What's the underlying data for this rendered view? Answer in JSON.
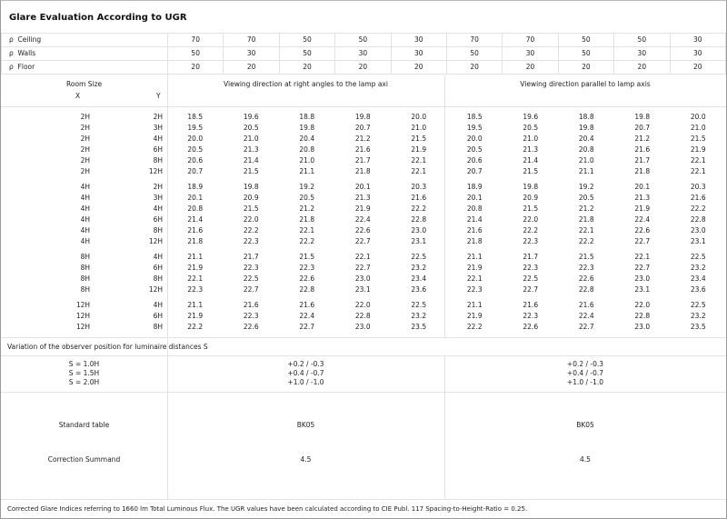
{
  "title": "Glare Evaluation According to UGR",
  "reflectance": {
    "symbol": "ρ",
    "rows": [
      {
        "label": "Ceiling",
        "values": [
          "70",
          "70",
          "50",
          "50",
          "30",
          "70",
          "70",
          "50",
          "50",
          "30"
        ]
      },
      {
        "label": "Walls",
        "values": [
          "50",
          "30",
          "50",
          "30",
          "30",
          "50",
          "30",
          "50",
          "30",
          "30"
        ]
      },
      {
        "label": "Floor",
        "values": [
          "20",
          "20",
          "20",
          "20",
          "20",
          "20",
          "20",
          "20",
          "20",
          "20"
        ]
      }
    ]
  },
  "header": {
    "room_size": "Room Size",
    "x": "X",
    "y": "Y",
    "dir_right_angles": "Viewing direction at right angles to the lamp axi",
    "dir_parallel": "Viewing direction parallel to lamp axis"
  },
  "groups": [
    {
      "rows": [
        {
          "x": "2H",
          "y": "2H",
          "values": [
            "18.5",
            "19.6",
            "18.8",
            "19.8",
            "20.0",
            "18.5",
            "19.6",
            "18.8",
            "19.8",
            "20.0"
          ]
        },
        {
          "x": "2H",
          "y": "3H",
          "values": [
            "19.5",
            "20.5",
            "19.8",
            "20.7",
            "21.0",
            "19.5",
            "20.5",
            "19.8",
            "20.7",
            "21.0"
          ]
        },
        {
          "x": "2H",
          "y": "4H",
          "values": [
            "20.0",
            "21.0",
            "20.4",
            "21.2",
            "21.5",
            "20.0",
            "21.0",
            "20.4",
            "21.2",
            "21.5"
          ]
        },
        {
          "x": "2H",
          "y": "6H",
          "values": [
            "20.5",
            "21.3",
            "20.8",
            "21.6",
            "21.9",
            "20.5",
            "21.3",
            "20.8",
            "21.6",
            "21.9"
          ]
        },
        {
          "x": "2H",
          "y": "8H",
          "values": [
            "20.6",
            "21.4",
            "21.0",
            "21.7",
            "22.1",
            "20.6",
            "21.4",
            "21.0",
            "21.7",
            "22.1"
          ]
        },
        {
          "x": "2H",
          "y": "12H",
          "values": [
            "20.7",
            "21.5",
            "21.1",
            "21.8",
            "22.1",
            "20.7",
            "21.5",
            "21.1",
            "21.8",
            "22.1"
          ]
        }
      ]
    },
    {
      "rows": [
        {
          "x": "4H",
          "y": "2H",
          "values": [
            "18.9",
            "19.8",
            "19.2",
            "20.1",
            "20.3",
            "18.9",
            "19.8",
            "19.2",
            "20.1",
            "20.3"
          ]
        },
        {
          "x": "4H",
          "y": "3H",
          "values": [
            "20.1",
            "20.9",
            "20.5",
            "21.3",
            "21.6",
            "20.1",
            "20.9",
            "20.5",
            "21.3",
            "21.6"
          ]
        },
        {
          "x": "4H",
          "y": "4H",
          "values": [
            "20.8",
            "21.5",
            "21.2",
            "21.9",
            "22.2",
            "20.8",
            "21.5",
            "21.2",
            "21.9",
            "22.2"
          ]
        },
        {
          "x": "4H",
          "y": "6H",
          "values": [
            "21.4",
            "22.0",
            "21.8",
            "22.4",
            "22.8",
            "21.4",
            "22.0",
            "21.8",
            "22.4",
            "22.8"
          ]
        },
        {
          "x": "4H",
          "y": "8H",
          "values": [
            "21.6",
            "22.2",
            "22.1",
            "22.6",
            "23.0",
            "21.6",
            "22.2",
            "22.1",
            "22.6",
            "23.0"
          ]
        },
        {
          "x": "4H",
          "y": "12H",
          "values": [
            "21.8",
            "22.3",
            "22.2",
            "22.7",
            "23.1",
            "21.8",
            "22.3",
            "22.2",
            "22.7",
            "23.1"
          ]
        }
      ]
    },
    {
      "rows": [
        {
          "x": "8H",
          "y": "4H",
          "values": [
            "21.1",
            "21.7",
            "21.5",
            "22.1",
            "22.5",
            "21.1",
            "21.7",
            "21.5",
            "22.1",
            "22.5"
          ]
        },
        {
          "x": "8H",
          "y": "6H",
          "values": [
            "21.9",
            "22.3",
            "22.3",
            "22.7",
            "23.2",
            "21.9",
            "22.3",
            "22.3",
            "22.7",
            "23.2"
          ]
        },
        {
          "x": "8H",
          "y": "8H",
          "values": [
            "22.1",
            "22.5",
            "22.6",
            "23.0",
            "23.4",
            "22.1",
            "22.5",
            "22.6",
            "23.0",
            "23.4"
          ]
        },
        {
          "x": "8H",
          "y": "12H",
          "values": [
            "22.3",
            "22.7",
            "22.8",
            "23.1",
            "23.6",
            "22.3",
            "22.7",
            "22.8",
            "23.1",
            "23.6"
          ]
        }
      ]
    },
    {
      "rows": [
        {
          "x": "12H",
          "y": "4H",
          "values": [
            "21.1",
            "21.6",
            "21.6",
            "22.0",
            "22.5",
            "21.1",
            "21.6",
            "21.6",
            "22.0",
            "22.5"
          ]
        },
        {
          "x": "12H",
          "y": "6H",
          "values": [
            "21.9",
            "22.3",
            "22.4",
            "22.8",
            "23.2",
            "21.9",
            "22.3",
            "22.4",
            "22.8",
            "23.2"
          ]
        },
        {
          "x": "12H",
          "y": "8H",
          "values": [
            "22.2",
            "22.6",
            "22.7",
            "23.0",
            "23.5",
            "22.2",
            "22.6",
            "22.7",
            "23.0",
            "23.5"
          ]
        }
      ]
    }
  ],
  "variation": {
    "label": "Variation of the observer position for luminaire distances S",
    "s_labels": [
      "S = 1.0H",
      "S = 1.5H",
      "S = 2.0H"
    ],
    "right_angles": [
      "+0.2 / -0.3",
      "+0.4 / -0.7",
      "+1.0 / -1.0"
    ],
    "parallel": [
      "+0.2 / -0.3",
      "+0.4 / -0.7",
      "+1.0 / -1.0"
    ]
  },
  "standard_table": {
    "label": "Standard table",
    "right_angles": "BK05",
    "parallel": "BK05"
  },
  "correction_summand": {
    "label": "Correction Summand",
    "right_angles": "4.5",
    "parallel": "4.5"
  },
  "footer": "Corrected Glare Indices referring to 1660 lm Total Luminous Flux. The UGR values have been calculated according to CIE Publ. 117    Spacing-to-Height-Ratio = 0.25."
}
